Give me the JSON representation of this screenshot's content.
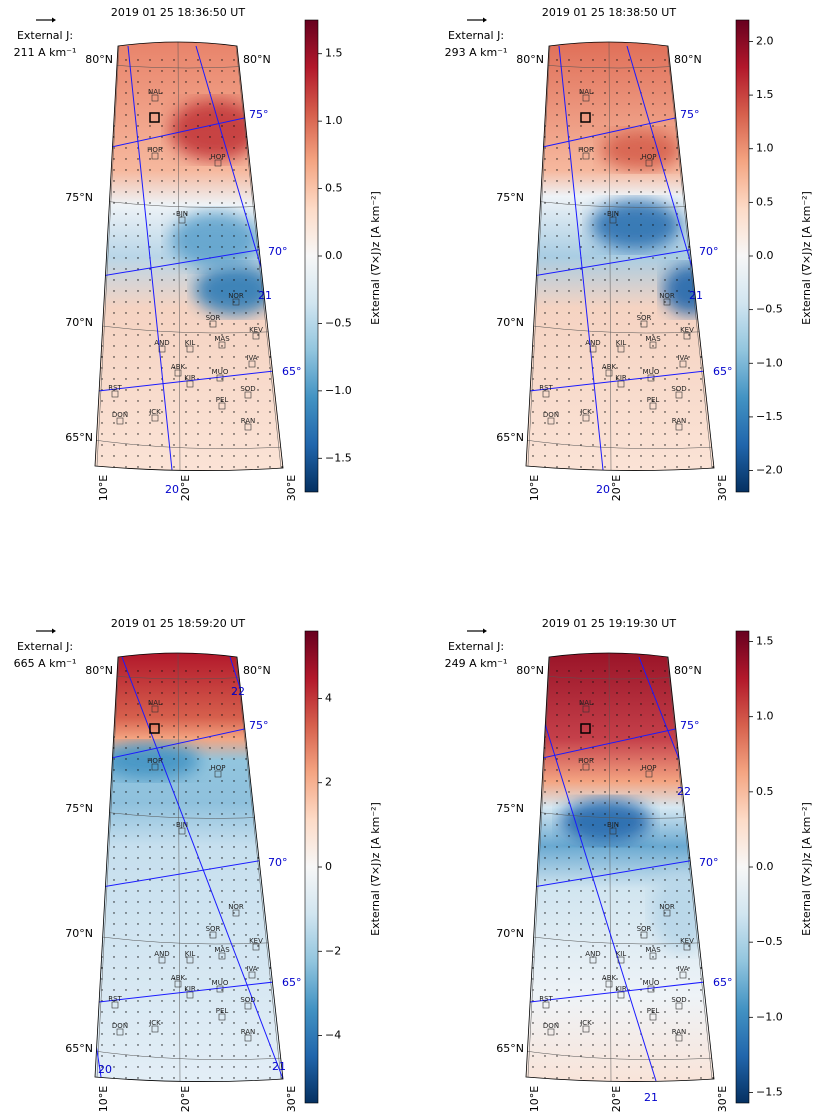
{
  "chart_data": [
    {
      "type": "map",
      "title": "2019 01 25 18:36:50 UT",
      "scale_title": "External J:",
      "scale_text": "211 A km⁻¹",
      "colorbar_label": "External (∇×J)z [A km⁻²]",
      "colormap": "RdBu_r",
      "clim": [
        -1.75,
        1.75
      ],
      "cticks": [
        {
          "value": -1.5,
          "label": "−1.5"
        },
        {
          "value": -1.0,
          "label": "−1.0"
        },
        {
          "value": -0.5,
          "label": "−0.5"
        },
        {
          "value": 0,
          "label": "0.0"
        },
        {
          "value": 0.5,
          "label": "0.5"
        },
        {
          "value": 1.0,
          "label": "1.0"
        },
        {
          "value": 1.5,
          "label": "1.5"
        }
      ],
      "mlt_labels": [
        "21",
        "20"
      ]
    },
    {
      "type": "map",
      "title": "2019 01 25 18:38:50 UT",
      "scale_title": "External J:",
      "scale_text": "293 A km⁻¹",
      "colorbar_label": "External (∇×J)z [A km⁻²]",
      "colormap": "RdBu_r",
      "clim": [
        -2.2,
        2.2
      ],
      "cticks": [
        {
          "value": -2.0,
          "label": "−2.0"
        },
        {
          "value": -1.5,
          "label": "−1.5"
        },
        {
          "value": -1.0,
          "label": "−1.0"
        },
        {
          "value": -0.5,
          "label": "−0.5"
        },
        {
          "value": 0,
          "label": "0.0"
        },
        {
          "value": 0.5,
          "label": "0.5"
        },
        {
          "value": 1.0,
          "label": "1.0"
        },
        {
          "value": 1.5,
          "label": "1.5"
        },
        {
          "value": 2.0,
          "label": "2.0"
        }
      ],
      "mlt_labels": [
        "21",
        "20"
      ]
    },
    {
      "type": "map",
      "title": "2019 01 25 18:59:20 UT",
      "scale_title": "External J:",
      "scale_text": "665 A km⁻¹",
      "colorbar_label": "External (∇×J)z [A km⁻²]",
      "colormap": "RdBu_r",
      "clim": [
        -5.6,
        5.6
      ],
      "cticks": [
        {
          "value": -4,
          "label": "−4"
        },
        {
          "value": -2,
          "label": "−2"
        },
        0,
        2,
        4
      ],
      "mlt_labels": [
        "22",
        "20",
        "21"
      ]
    },
    {
      "type": "map",
      "title": "2019 01 25 19:19:30 UT",
      "scale_title": "External J:",
      "scale_text": "249 A km⁻¹",
      "colorbar_label": "External (∇×J)z [A km⁻²]",
      "colormap": "RdBu_r",
      "clim": [
        -1.57,
        1.57
      ],
      "cticks": [
        {
          "value": -1.5,
          "label": "−1.5"
        },
        {
          "value": -1.0,
          "label": "−1.0"
        },
        {
          "value": -0.5,
          "label": "−0.5"
        },
        {
          "value": 0,
          "label": "0.0"
        },
        {
          "value": 0.5,
          "label": "0.5"
        },
        {
          "value": 1.0,
          "label": "1.0"
        },
        {
          "value": 1.5,
          "label": "1.5"
        }
      ],
      "mlt_labels": [
        "22",
        "21"
      ]
    }
  ],
  "lat_labels": [
    "80°N",
    "75°N",
    "70°N",
    "65°N"
  ],
  "lon_labels": [
    "10°E",
    "20°E",
    "30°E"
  ],
  "mlat_labels": [
    "75°",
    "70°",
    "65°"
  ],
  "stations": [
    "NAL",
    "HOR",
    "HOP",
    "BJN",
    "NOR",
    "SOR",
    "KEV",
    "AND",
    "KIL",
    "MAS",
    "IVA",
    "ABK",
    "KIR",
    "MUO",
    "SOD",
    "RST",
    "PEL",
    "DON",
    "JCK",
    "RAN"
  ]
}
